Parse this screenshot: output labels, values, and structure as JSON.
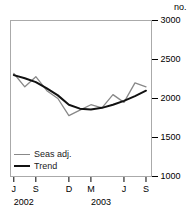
{
  "chart_data": {
    "type": "line",
    "ylabel": "no.",
    "x": [
      0,
      1,
      2,
      3,
      4,
      5,
      6,
      7,
      8,
      9,
      10,
      11,
      12
    ],
    "series": [
      {
        "name": "Seas adj.",
        "color": "#888888",
        "values": [
          2320,
          2150,
          2280,
          2100,
          2000,
          1780,
          1850,
          1920,
          1880,
          2050,
          1950,
          2200,
          2150
        ]
      },
      {
        "name": "Trend",
        "color": "#111111",
        "values": [
          2300,
          2260,
          2210,
          2130,
          2040,
          1920,
          1870,
          1860,
          1880,
          1920,
          1970,
          2030,
          2100
        ]
      }
    ],
    "xlim": [
      -0.3,
      12.5
    ],
    "xticks": [
      {
        "value": 0,
        "label": "J"
      },
      {
        "value": 2,
        "label": "S"
      },
      {
        "value": 5,
        "label": "D"
      },
      {
        "value": 7,
        "label": "M"
      },
      {
        "value": 10,
        "label": "J"
      },
      {
        "value": 12,
        "label": "S"
      }
    ],
    "ylim": [
      1000,
      3000
    ],
    "yticks": [
      1000,
      1500,
      2000,
      2500,
      3000
    ],
    "annotations": [
      {
        "text": "2002",
        "x": 0
      },
      {
        "text": "2003",
        "x": 7
      }
    ],
    "legend": "lower left",
    "grid": false
  }
}
